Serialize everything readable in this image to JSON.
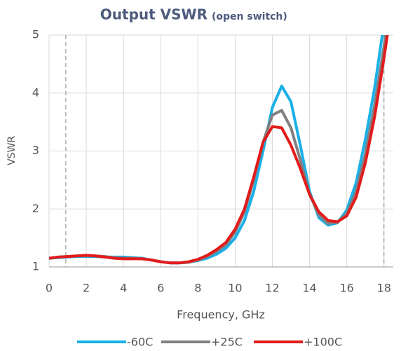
{
  "chart_data": {
    "type": "line",
    "title": "Output VSWR",
    "subtitle": "(open switch)",
    "x_label": "Frequency, GHz",
    "y_label": "VSWR",
    "x": [
      0,
      0.5,
      1,
      1.5,
      2,
      2.5,
      3,
      3.5,
      4,
      4.5,
      5,
      5.5,
      6,
      6.5,
      7,
      7.5,
      8,
      8.5,
      9,
      9.5,
      10,
      10.5,
      11,
      11.5,
      12,
      12.5,
      13,
      13.5,
      14,
      14.5,
      15,
      15.5,
      16,
      16.5,
      17,
      17.5,
      18,
      18.5
    ],
    "series": [
      {
        "name": "-60C",
        "color": "#1ab0e8",
        "values": [
          1.15,
          1.16,
          1.17,
          1.18,
          1.18,
          1.18,
          1.17,
          1.17,
          1.17,
          1.16,
          1.15,
          1.12,
          1.09,
          1.07,
          1.07,
          1.08,
          1.11,
          1.15,
          1.22,
          1.32,
          1.5,
          1.8,
          2.3,
          3.0,
          3.75,
          4.12,
          3.85,
          3.1,
          2.3,
          1.85,
          1.72,
          1.76,
          1.98,
          2.45,
          3.2,
          4.1,
          5.2,
          6.2
        ]
      },
      {
        "name": "+25C",
        "color": "#808080",
        "values": [
          1.15,
          1.17,
          1.18,
          1.19,
          1.19,
          1.19,
          1.18,
          1.16,
          1.15,
          1.15,
          1.14,
          1.12,
          1.09,
          1.07,
          1.07,
          1.08,
          1.12,
          1.18,
          1.27,
          1.38,
          1.6,
          1.95,
          2.5,
          3.15,
          3.62,
          3.7,
          3.4,
          2.85,
          2.25,
          1.9,
          1.75,
          1.77,
          1.92,
          2.3,
          2.95,
          3.8,
          4.8,
          5.9
        ]
      },
      {
        "name": "+100C",
        "color": "#e31b1b",
        "values": [
          1.15,
          1.17,
          1.18,
          1.19,
          1.2,
          1.19,
          1.17,
          1.15,
          1.14,
          1.14,
          1.14,
          1.12,
          1.09,
          1.07,
          1.07,
          1.09,
          1.13,
          1.2,
          1.3,
          1.42,
          1.65,
          2.0,
          2.55,
          3.15,
          3.42,
          3.4,
          3.1,
          2.7,
          2.25,
          1.95,
          1.8,
          1.78,
          1.88,
          2.2,
          2.8,
          3.6,
          4.6,
          5.7
        ]
      }
    ],
    "xlim": [
      0,
      18.5
    ],
    "xticks": [
      0,
      2,
      4,
      6,
      8,
      10,
      12,
      14,
      16,
      18
    ],
    "ylim": [
      1,
      5
    ],
    "yticks": [
      1,
      2,
      3,
      4,
      5
    ],
    "vlines": [
      0.9,
      18
    ],
    "grid": true
  }
}
